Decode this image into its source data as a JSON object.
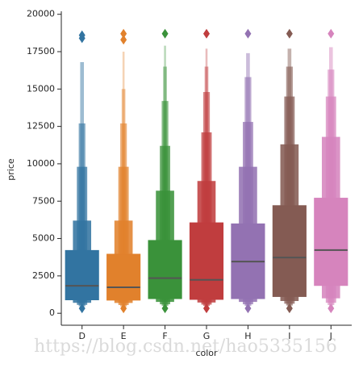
{
  "chart_data": {
    "type": "boxen",
    "x_label": "color",
    "y_label": "price",
    "watermark": "https://blog.csdn.net/hao5335156",
    "categories": [
      "D",
      "E",
      "F",
      "G",
      "H",
      "I",
      "J"
    ],
    "colors": [
      "#3274a1",
      "#e1812c",
      "#3a923a",
      "#c03d3e",
      "#9372b2",
      "#845b53",
      "#d684bd"
    ],
    "median_color": "#555555",
    "ylim": [
      -800,
      20200
    ],
    "yticks": [
      0,
      2500,
      5000,
      7500,
      10000,
      12500,
      15000,
      17500,
      20000
    ],
    "boxes": [
      {
        "median": 1840,
        "levels": [
          [
            900,
            4200
          ],
          [
            700,
            6200
          ],
          [
            560,
            9800
          ],
          [
            470,
            12700
          ],
          [
            420,
            16800
          ]
        ],
        "outliers": [
          18400,
          18600,
          330
        ]
      },
      {
        "median": 1740,
        "levels": [
          [
            880,
            3950
          ],
          [
            690,
            6200
          ],
          [
            550,
            9800
          ],
          [
            460,
            12700
          ],
          [
            410,
            15000
          ],
          [
            380,
            17500
          ]
        ],
        "outliers": [
          18300,
          18700,
          330
        ]
      },
      {
        "median": 2350,
        "levels": [
          [
            980,
            4870
          ],
          [
            760,
            8200
          ],
          [
            600,
            11200
          ],
          [
            500,
            14200
          ],
          [
            440,
            16500
          ],
          [
            400,
            17900
          ]
        ],
        "outliers": [
          18700,
          330
        ]
      },
      {
        "median": 2240,
        "levels": [
          [
            930,
            6050
          ],
          [
            720,
            8850
          ],
          [
            580,
            12100
          ],
          [
            490,
            14800
          ],
          [
            430,
            16500
          ],
          [
            400,
            17700
          ]
        ],
        "outliers": [
          18700,
          330
        ]
      },
      {
        "median": 3460,
        "levels": [
          [
            980,
            5980
          ],
          [
            760,
            9800
          ],
          [
            600,
            12800
          ],
          [
            500,
            15800
          ],
          [
            440,
            17400
          ]
        ],
        "outliers": [
          18700,
          330
        ]
      },
      {
        "median": 3730,
        "levels": [
          [
            1120,
            7200
          ],
          [
            820,
            11300
          ],
          [
            640,
            14500
          ],
          [
            520,
            16500
          ],
          [
            450,
            17700
          ]
        ],
        "outliers": [
          18700,
          330
        ]
      },
      {
        "median": 4230,
        "levels": [
          [
            1860,
            7700
          ],
          [
            1000,
            11800
          ],
          [
            700,
            14500
          ],
          [
            550,
            16300
          ],
          [
            470,
            17800
          ]
        ],
        "outliers": [
          18700,
          330
        ]
      }
    ]
  }
}
